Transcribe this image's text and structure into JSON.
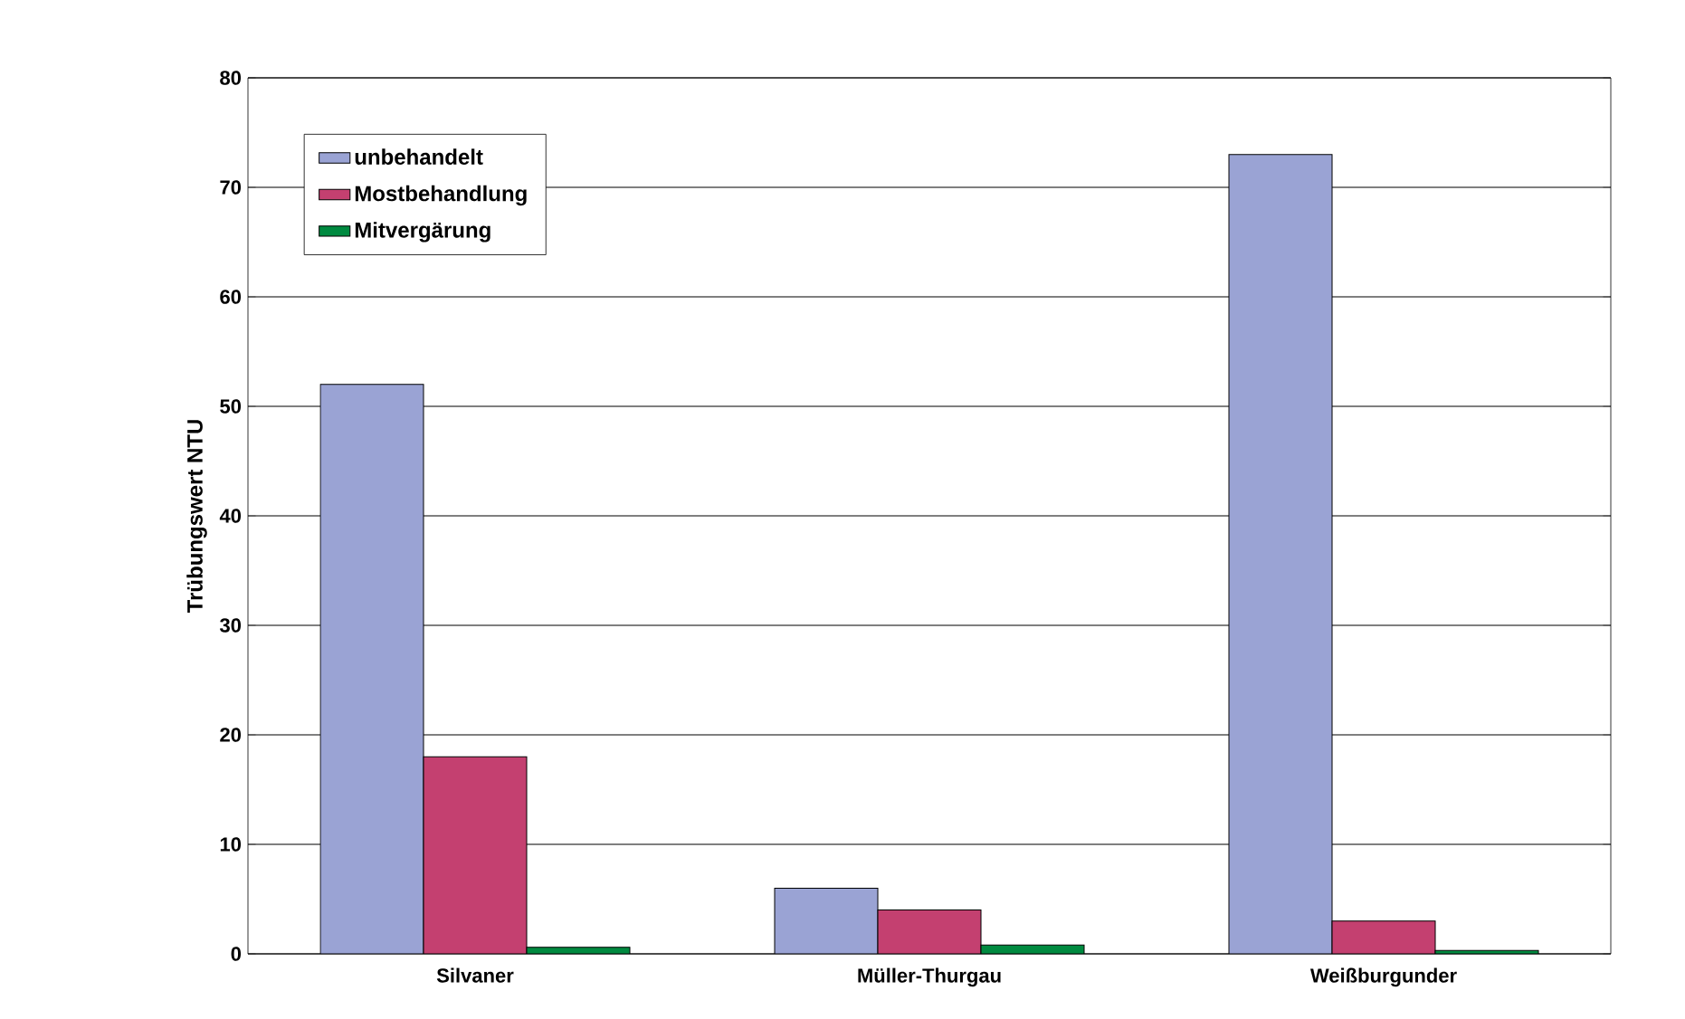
{
  "chart_data": {
    "type": "bar",
    "ylabel": "Trübungswert NTU",
    "categories": [
      "Silvaner",
      "Müller-Thurgau",
      "Weißburgunder"
    ],
    "series": [
      {
        "name": "unbehandelt",
        "color": "#9aa3d4",
        "values": [
          52,
          6,
          73
        ]
      },
      {
        "name": "Mostbehandlung",
        "color": "#c44070",
        "values": [
          18,
          4,
          3
        ]
      },
      {
        "name": "Mitvergärung",
        "color": "#008a40",
        "values": [
          0.6,
          0.8,
          0.3
        ]
      }
    ],
    "ylim": [
      0,
      80
    ],
    "yticks": [
      0,
      10,
      20,
      30,
      40,
      50,
      60,
      70,
      80
    ],
    "grid": "y",
    "legend": "top left"
  }
}
